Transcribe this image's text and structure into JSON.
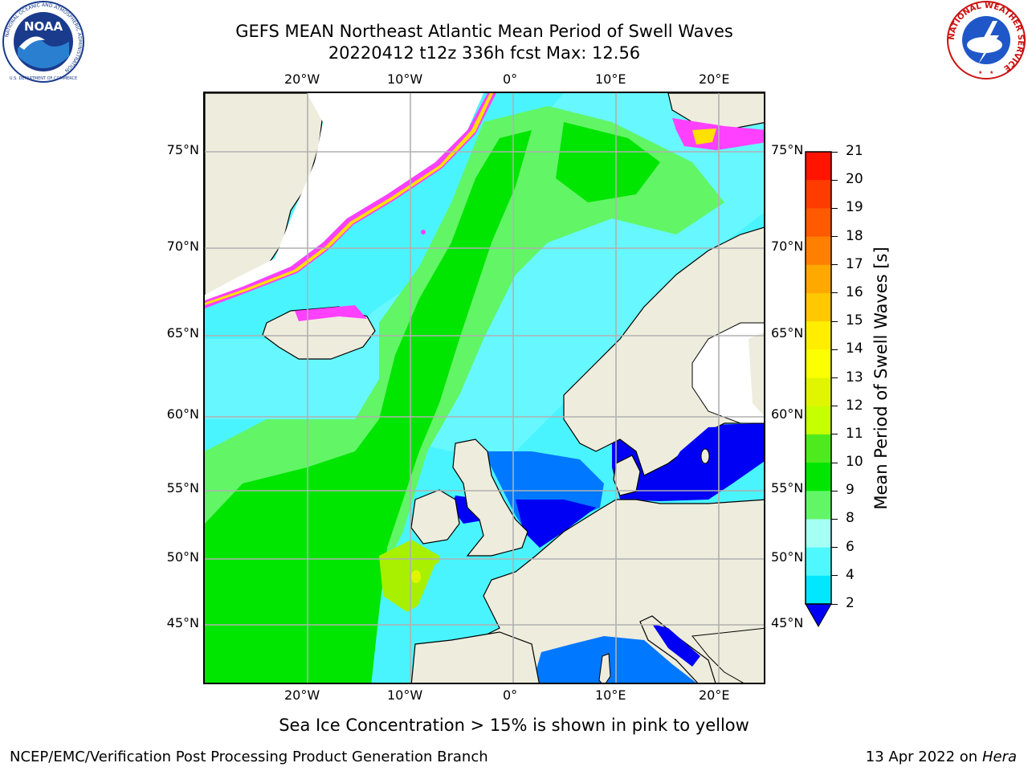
{
  "header": {
    "title_line1": "GEFS MEAN Northeast Atlantic Mean Period of Swell Waves",
    "title_line2": "20220412 t12z 336h fcst   Max: 12.56"
  },
  "logos": {
    "left": "noaa-logo",
    "left_ring_text": "NATIONAL OCEANIC AND ATMOSPHERIC ADMINISTRATION",
    "left_bottom_text": "U.S. DEPARTMENT OF COMMERCE",
    "left_center_text": "NOAA",
    "right": "nws-logo",
    "right_ring_text": "NATIONAL WEATHER SERVICE"
  },
  "map": {
    "lon_labels": [
      "20°W",
      "10°W",
      "0°",
      "10°E",
      "20°E"
    ],
    "lat_labels": [
      "75°N",
      "70°N",
      "65°N",
      "60°N",
      "55°N",
      "50°N",
      "45°N"
    ],
    "colors": {
      "ocean_base": "#49f4ff",
      "land": "#eeecdc",
      "green": "#00e600",
      "light_green": "#62f566",
      "yellow_green": "#a8f000",
      "blue": "#0078ff",
      "dark_blue": "#0000f5",
      "ice_pink": "#ff40ff",
      "ice_yellow": "#ffe000"
    }
  },
  "colorbar": {
    "label": "Mean Period of Swell Waves [s]",
    "ticks": [
      "21",
      "20",
      "19",
      "18",
      "17",
      "16",
      "15",
      "14",
      "13",
      "12",
      "11",
      "10",
      "9",
      "8",
      "6",
      "4",
      "2"
    ],
    "colors": [
      "#ff1400",
      "#ff3c00",
      "#ff5a00",
      "#ff8000",
      "#ffa800",
      "#ffc800",
      "#ffee00",
      "#fbff00",
      "#e2f500",
      "#c6ff00",
      "#4fea1d",
      "#00e600",
      "#62f566",
      "#a6fff4",
      "#4ff7ff",
      "#00e7ff",
      "#00f0ff",
      "#0078ff",
      "#0000f5"
    ]
  },
  "footer": {
    "note": "Sea Ice Concentration > 15% is shown in pink to yellow",
    "credit_left": "NCEP/EMC/Verification Post Processing Product Generation Branch",
    "credit_right_date": "13 Apr 2022 on",
    "credit_right_host": "Hera"
  }
}
